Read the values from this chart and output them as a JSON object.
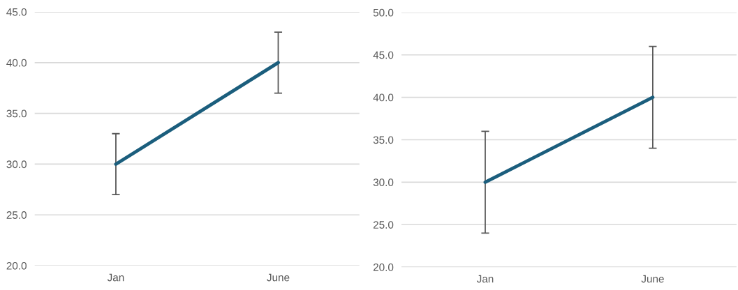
{
  "chart_data": [
    {
      "type": "line",
      "categories": [
        "Jan",
        "June"
      ],
      "series": [
        {
          "color": "#1b5e7d",
          "values": [
            30,
            40
          ],
          "errors": [
            3,
            3
          ]
        }
      ],
      "ylim": [
        20,
        45
      ],
      "yticks": [
        {
          "value": 20,
          "label": "20.0"
        },
        {
          "value": 25,
          "label": "25.0"
        },
        {
          "value": 30,
          "label": "30.0"
        },
        {
          "value": 35,
          "label": "35.0"
        },
        {
          "value": 40,
          "label": "40.0"
        },
        {
          "value": 45,
          "label": "45.0"
        }
      ],
      "grid": "y"
    },
    {
      "type": "line",
      "categories": [
        "Jan",
        "June"
      ],
      "series": [
        {
          "color": "#1b5e7d",
          "values": [
            30,
            40
          ],
          "errors": [
            6,
            6
          ]
        }
      ],
      "ylim": [
        20,
        50
      ],
      "yticks": [
        {
          "value": 20,
          "label": "20.0"
        },
        {
          "value": 25,
          "label": "25.0"
        },
        {
          "value": 30,
          "label": "30.0"
        },
        {
          "value": 35,
          "label": "35.0"
        },
        {
          "value": 40,
          "label": "40.0"
        },
        {
          "value": 45,
          "label": "45.0"
        },
        {
          "value": 50,
          "label": "50.0"
        }
      ],
      "grid": "y"
    }
  ]
}
